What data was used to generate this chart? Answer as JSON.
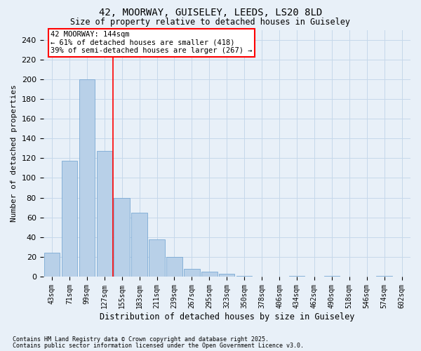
{
  "title1": "42, MOORWAY, GUISELEY, LEEDS, LS20 8LD",
  "title2": "Size of property relative to detached houses in Guiseley",
  "xlabel": "Distribution of detached houses by size in Guiseley",
  "ylabel": "Number of detached properties",
  "categories": [
    "43sqm",
    "71sqm",
    "99sqm",
    "127sqm",
    "155sqm",
    "183sqm",
    "211sqm",
    "239sqm",
    "267sqm",
    "295sqm",
    "323sqm",
    "350sqm",
    "378sqm",
    "406sqm",
    "434sqm",
    "462sqm",
    "490sqm",
    "518sqm",
    "546sqm",
    "574sqm",
    "602sqm"
  ],
  "values": [
    24,
    117,
    200,
    127,
    80,
    65,
    38,
    20,
    8,
    5,
    3,
    1,
    0,
    0,
    1,
    0,
    1,
    0,
    0,
    1,
    0
  ],
  "bar_color": "#b8d0e8",
  "bar_edge_color": "#6a9fcf",
  "grid_color": "#c5d8ea",
  "background_color": "#e8f0f8",
  "vline_x": 3.5,
  "vline_color": "red",
  "annotation_text": "42 MOORWAY: 144sqm\n← 61% of detached houses are smaller (418)\n39% of semi-detached houses are larger (267) →",
  "annotation_box_color": "white",
  "annotation_box_edge": "red",
  "ylim": [
    0,
    250
  ],
  "yticks": [
    0,
    20,
    40,
    60,
    80,
    100,
    120,
    140,
    160,
    180,
    200,
    220,
    240
  ],
  "footer1": "Contains HM Land Registry data © Crown copyright and database right 2025.",
  "footer2": "Contains public sector information licensed under the Open Government Licence v3.0."
}
